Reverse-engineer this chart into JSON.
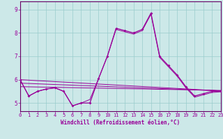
{
  "xlabel": "Windchill (Refroidissement éolien,°C)",
  "x": [
    0,
    1,
    2,
    3,
    4,
    5,
    6,
    7,
    8,
    9,
    10,
    11,
    12,
    13,
    14,
    15,
    16,
    17,
    18,
    19,
    20,
    21,
    22,
    23
  ],
  "line_main": [
    6.0,
    5.3,
    5.5,
    5.6,
    5.65,
    5.5,
    4.88,
    5.0,
    5.0,
    6.05,
    7.0,
    8.2,
    8.1,
    8.0,
    8.15,
    8.85,
    7.0,
    6.6,
    6.2,
    5.7,
    5.3,
    5.4,
    5.5,
    5.5
  ],
  "line_smooth": [
    6.0,
    5.3,
    5.5,
    5.6,
    5.65,
    5.5,
    4.88,
    5.0,
    5.15,
    6.05,
    7.0,
    8.15,
    8.05,
    7.95,
    8.1,
    8.8,
    6.95,
    6.55,
    6.15,
    5.65,
    5.25,
    5.35,
    5.45,
    5.48
  ],
  "trend1_x": [
    0,
    23
  ],
  "trend1_y": [
    6.0,
    5.52
  ],
  "trend2_x": [
    0,
    23
  ],
  "trend2_y": [
    5.85,
    5.52
  ],
  "trend3_x": [
    0,
    23
  ],
  "trend3_y": [
    5.7,
    5.54
  ],
  "bg_color": "#cce8e8",
  "grid_color": "#99cccc",
  "line_color": "#990099",
  "spine_color": "#660066",
  "ylim": [
    4.65,
    9.35
  ],
  "xlim": [
    0,
    23
  ],
  "yticks": [
    5,
    6,
    7,
    8,
    9
  ],
  "xticks": [
    0,
    1,
    2,
    3,
    4,
    5,
    6,
    7,
    8,
    9,
    10,
    11,
    12,
    13,
    14,
    15,
    16,
    17,
    18,
    19,
    20,
    21,
    22,
    23
  ],
  "tick_fontsize": 5.0,
  "xlabel_fontsize": 5.5,
  "lw_main": 0.9,
  "lw_trend": 0.7
}
